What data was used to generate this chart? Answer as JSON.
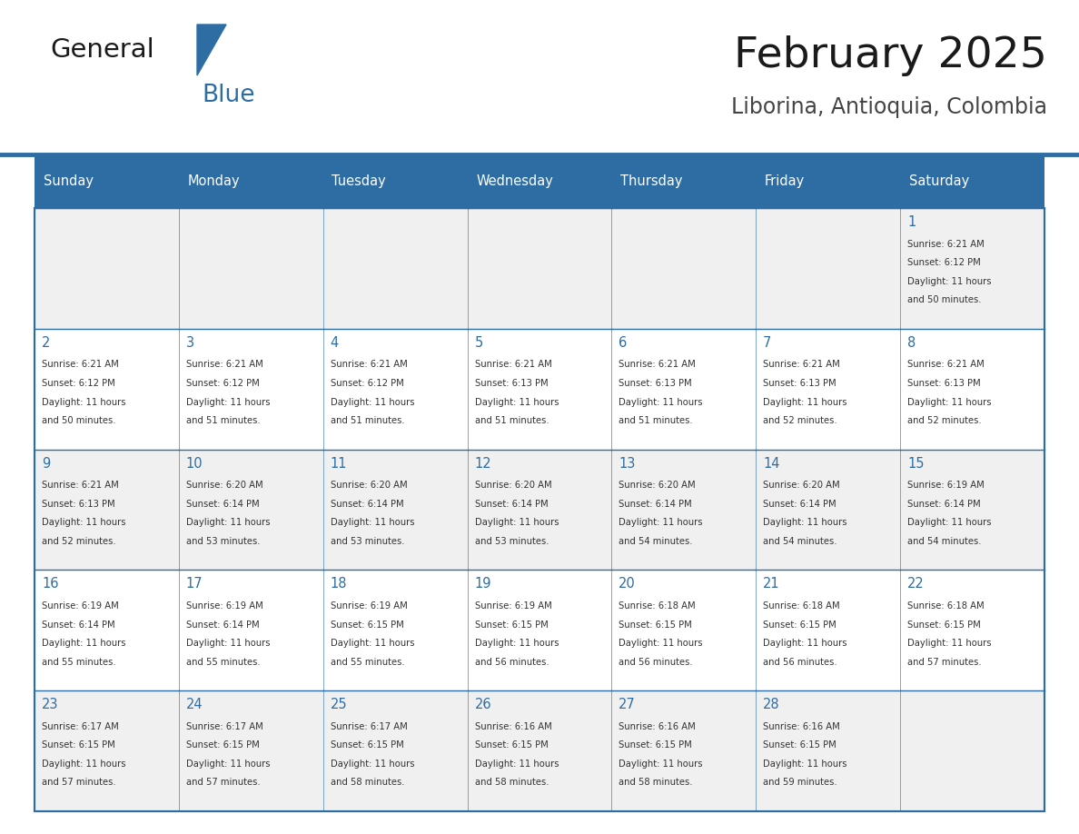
{
  "title": "February 2025",
  "subtitle": "Liborina, Antioquia, Colombia",
  "header_bg": "#2E6DA4",
  "header_text": "#FFFFFF",
  "cell_bg_even": "#F0F0F0",
  "cell_bg_odd": "#FFFFFF",
  "border_color": "#2E6DA4",
  "days_of_week": [
    "Sunday",
    "Monday",
    "Tuesday",
    "Wednesday",
    "Thursday",
    "Friday",
    "Saturday"
  ],
  "title_color": "#1a1a1a",
  "subtitle_color": "#444444",
  "day_num_color": "#2E6DA4",
  "cell_text_color": "#333333",
  "logo_general_color": "#1a1a1a",
  "logo_blue_color": "#2E6DA4",
  "calendar": [
    [
      null,
      null,
      null,
      null,
      null,
      null,
      {
        "day": 1,
        "sunrise": "6:21 AM",
        "sunset": "6:12 PM",
        "daylight": "11 hours\nand 50 minutes."
      }
    ],
    [
      {
        "day": 2,
        "sunrise": "6:21 AM",
        "sunset": "6:12 PM",
        "daylight": "11 hours\nand 50 minutes."
      },
      {
        "day": 3,
        "sunrise": "6:21 AM",
        "sunset": "6:12 PM",
        "daylight": "11 hours\nand 51 minutes."
      },
      {
        "day": 4,
        "sunrise": "6:21 AM",
        "sunset": "6:12 PM",
        "daylight": "11 hours\nand 51 minutes."
      },
      {
        "day": 5,
        "sunrise": "6:21 AM",
        "sunset": "6:13 PM",
        "daylight": "11 hours\nand 51 minutes."
      },
      {
        "day": 6,
        "sunrise": "6:21 AM",
        "sunset": "6:13 PM",
        "daylight": "11 hours\nand 51 minutes."
      },
      {
        "day": 7,
        "sunrise": "6:21 AM",
        "sunset": "6:13 PM",
        "daylight": "11 hours\nand 52 minutes."
      },
      {
        "day": 8,
        "sunrise": "6:21 AM",
        "sunset": "6:13 PM",
        "daylight": "11 hours\nand 52 minutes."
      }
    ],
    [
      {
        "day": 9,
        "sunrise": "6:21 AM",
        "sunset": "6:13 PM",
        "daylight": "11 hours\nand 52 minutes."
      },
      {
        "day": 10,
        "sunrise": "6:20 AM",
        "sunset": "6:14 PM",
        "daylight": "11 hours\nand 53 minutes."
      },
      {
        "day": 11,
        "sunrise": "6:20 AM",
        "sunset": "6:14 PM",
        "daylight": "11 hours\nand 53 minutes."
      },
      {
        "day": 12,
        "sunrise": "6:20 AM",
        "sunset": "6:14 PM",
        "daylight": "11 hours\nand 53 minutes."
      },
      {
        "day": 13,
        "sunrise": "6:20 AM",
        "sunset": "6:14 PM",
        "daylight": "11 hours\nand 54 minutes."
      },
      {
        "day": 14,
        "sunrise": "6:20 AM",
        "sunset": "6:14 PM",
        "daylight": "11 hours\nand 54 minutes."
      },
      {
        "day": 15,
        "sunrise": "6:19 AM",
        "sunset": "6:14 PM",
        "daylight": "11 hours\nand 54 minutes."
      }
    ],
    [
      {
        "day": 16,
        "sunrise": "6:19 AM",
        "sunset": "6:14 PM",
        "daylight": "11 hours\nand 55 minutes."
      },
      {
        "day": 17,
        "sunrise": "6:19 AM",
        "sunset": "6:14 PM",
        "daylight": "11 hours\nand 55 minutes."
      },
      {
        "day": 18,
        "sunrise": "6:19 AM",
        "sunset": "6:15 PM",
        "daylight": "11 hours\nand 55 minutes."
      },
      {
        "day": 19,
        "sunrise": "6:19 AM",
        "sunset": "6:15 PM",
        "daylight": "11 hours\nand 56 minutes."
      },
      {
        "day": 20,
        "sunrise": "6:18 AM",
        "sunset": "6:15 PM",
        "daylight": "11 hours\nand 56 minutes."
      },
      {
        "day": 21,
        "sunrise": "6:18 AM",
        "sunset": "6:15 PM",
        "daylight": "11 hours\nand 56 minutes."
      },
      {
        "day": 22,
        "sunrise": "6:18 AM",
        "sunset": "6:15 PM",
        "daylight": "11 hours\nand 57 minutes."
      }
    ],
    [
      {
        "day": 23,
        "sunrise": "6:17 AM",
        "sunset": "6:15 PM",
        "daylight": "11 hours\nand 57 minutes."
      },
      {
        "day": 24,
        "sunrise": "6:17 AM",
        "sunset": "6:15 PM",
        "daylight": "11 hours\nand 57 minutes."
      },
      {
        "day": 25,
        "sunrise": "6:17 AM",
        "sunset": "6:15 PM",
        "daylight": "11 hours\nand 58 minutes."
      },
      {
        "day": 26,
        "sunrise": "6:16 AM",
        "sunset": "6:15 PM",
        "daylight": "11 hours\nand 58 minutes."
      },
      {
        "day": 27,
        "sunrise": "6:16 AM",
        "sunset": "6:15 PM",
        "daylight": "11 hours\nand 58 minutes."
      },
      {
        "day": 28,
        "sunrise": "6:16 AM",
        "sunset": "6:15 PM",
        "daylight": "11 hours\nand 59 minutes."
      },
      null
    ]
  ]
}
